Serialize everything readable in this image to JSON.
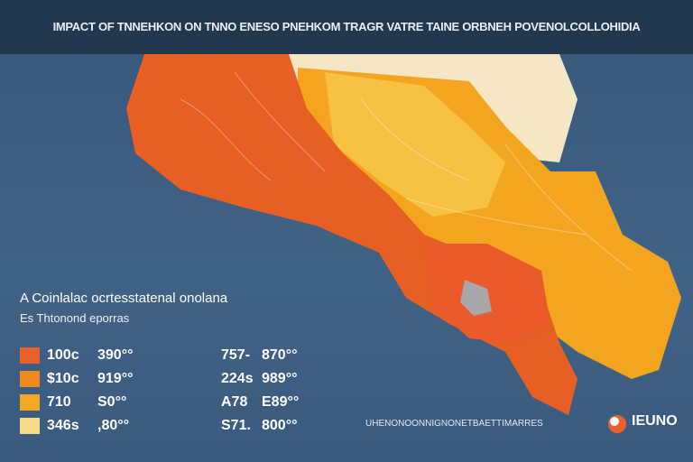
{
  "header": {
    "title": "IMPACT OF TNNEHKON ON TNNO ENESO PNEHKOM TRAGR VATRE TAINE ORBNEH POVENOLCOLLOHIDIA"
  },
  "subtitle": {
    "line1": "A Coinlalac ocrtesstatenal onolana",
    "line2": "Es Thtonond eporras"
  },
  "legend": {
    "rows": [
      {
        "label": "100c",
        "value": "390°°"
      },
      {
        "label": "$10c",
        "value": "919°°"
      },
      {
        "label": "710",
        "value": "S0°°"
      },
      {
        "label": "346s",
        "value": ",80°°"
      }
    ]
  },
  "legend2": {
    "rows": [
      {
        "label": "757-",
        "value": "870°°"
      },
      {
        "label": "224s",
        "value": "989°°"
      },
      {
        "label": "A78",
        "value": "E89°°"
      },
      {
        "label": "S71.",
        "value": "800°°"
      }
    ]
  },
  "footer": {
    "source": "UHENONOONNIGNONETBAETTIMARRES"
  },
  "logo": {
    "text": "IEUNO"
  }
}
